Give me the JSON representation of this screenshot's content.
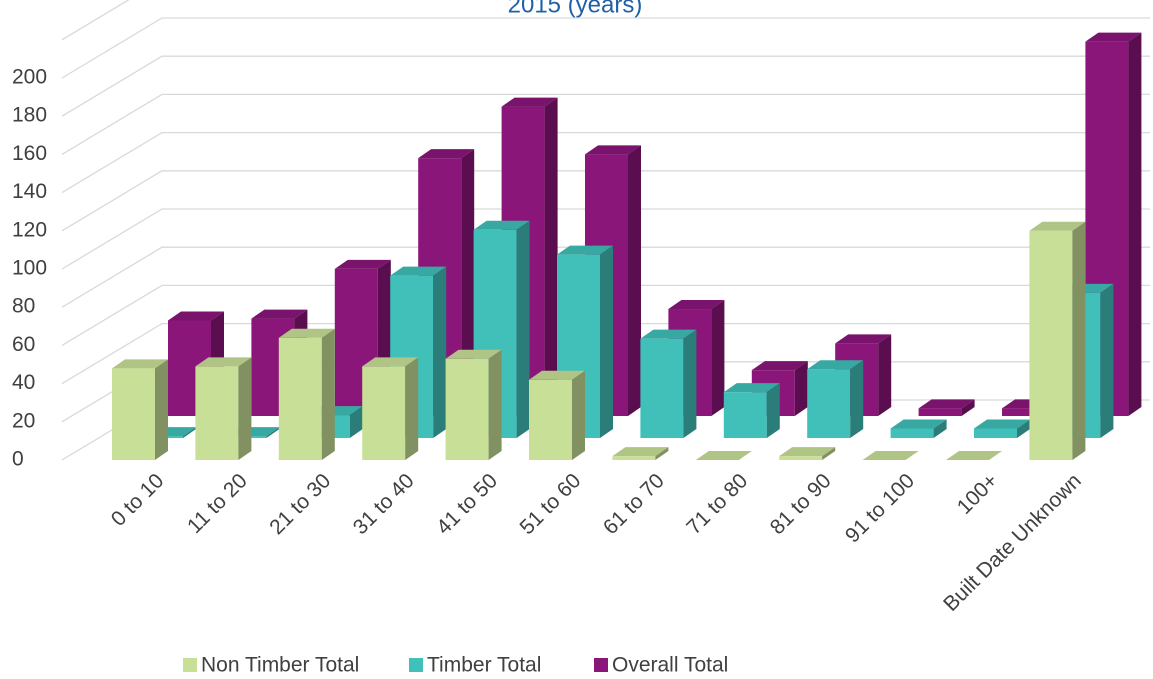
{
  "chart_data": {
    "type": "bar3d",
    "title": "2015 (years)",
    "categories": [
      "0 to 10",
      "11 to 20",
      "21 to 30",
      "31 to 40",
      "41 to 50",
      "51 to 60",
      "61 to 70",
      "71 to 80",
      "81 to 90",
      "91 to 100",
      "100+",
      "Built Date Unknown"
    ],
    "series": [
      {
        "name": "Non Timber Total",
        "color": "#c8df97",
        "values": [
          48,
          49,
          64,
          49,
          53,
          42,
          2,
          0,
          2,
          0,
          0,
          120
        ]
      },
      {
        "name": "Timber Total",
        "color": "#40c0b8",
        "values": [
          1,
          1,
          12,
          85,
          109,
          96,
          52,
          24,
          36,
          5,
          5,
          76
        ]
      },
      {
        "name": "Overall Total",
        "color": "#8a167a",
        "values": [
          50,
          51,
          77,
          135,
          162,
          137,
          56,
          24,
          38,
          4,
          4,
          196
        ]
      }
    ],
    "ylim": [
      0,
      220
    ],
    "yticks": [
      0,
      20,
      40,
      60,
      80,
      100,
      120,
      140,
      160,
      180,
      200
    ],
    "grid": true,
    "legend": "bottom"
  }
}
